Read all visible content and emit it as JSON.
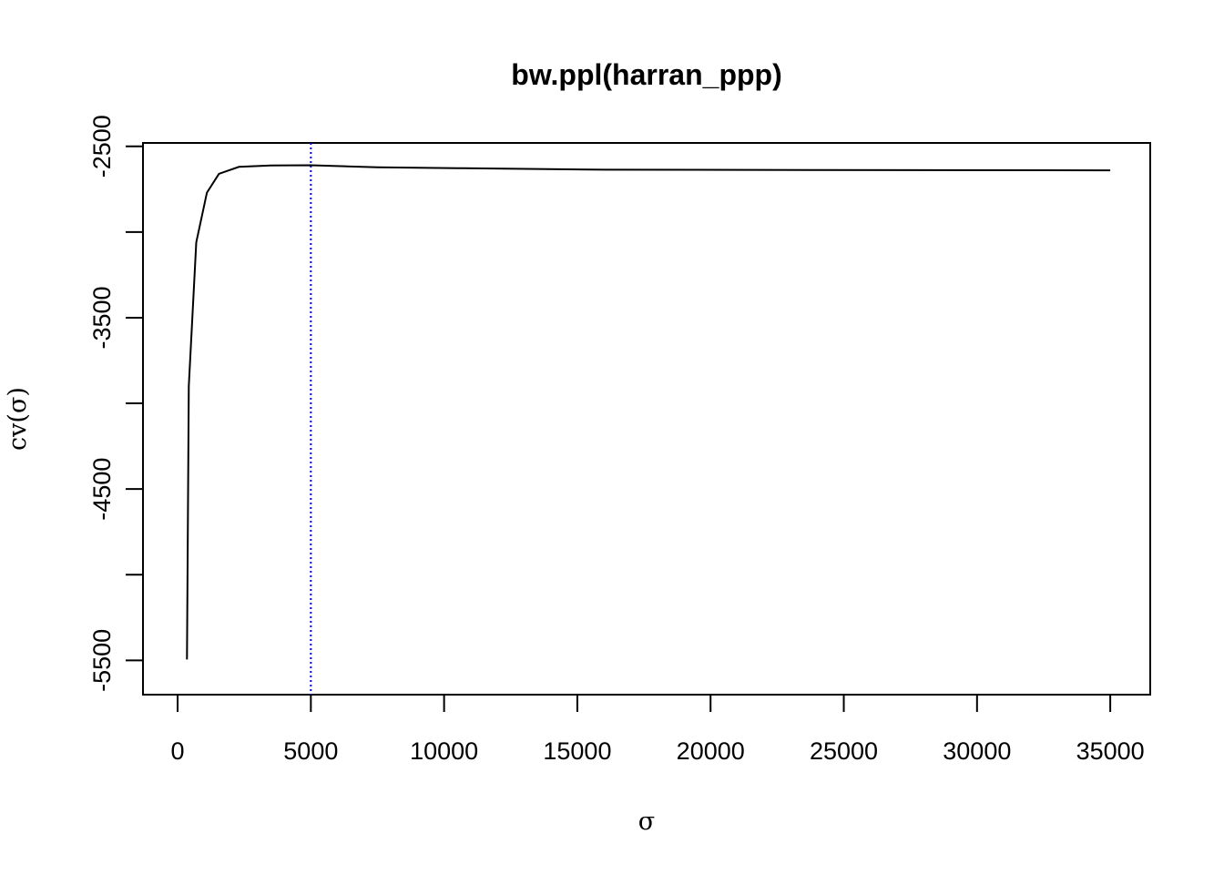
{
  "chart_data": {
    "type": "line",
    "title": "bw.ppl(harran_ppp)",
    "xlabel": "σ",
    "ylabel": "cv(σ)",
    "xlim": [
      -1300,
      36500
    ],
    "ylim": [
      -5700,
      -2480
    ],
    "x_ticks": [
      0,
      5000,
      10000,
      15000,
      20000,
      25000,
      30000,
      35000
    ],
    "x_tick_labels": [
      "0",
      "5000",
      "10000",
      "15000",
      "20000",
      "25000",
      "30000",
      "35000"
    ],
    "y_ticks": [
      -5500,
      -5000,
      -4500,
      -4000,
      -3500,
      -3000,
      -2500
    ],
    "y_tick_labels": [
      "-5500",
      "",
      "-4500",
      "",
      "-3500",
      "",
      "-2500"
    ],
    "series": [
      {
        "x": [
          350,
          420,
          700,
          1100,
          1550,
          2300,
          3500,
          5000,
          7500,
          10500,
          16000,
          24000,
          35000
        ],
        "y": [
          -5495,
          -3900,
          -3060,
          -2770,
          -2660,
          -2620,
          -2612,
          -2610,
          -2622,
          -2627,
          -2636,
          -2638,
          -2640
        ]
      }
    ],
    "reference_line": {
      "x": 5000,
      "color": "#0000ff",
      "style": "dotted"
    },
    "line_color": "#000000"
  }
}
